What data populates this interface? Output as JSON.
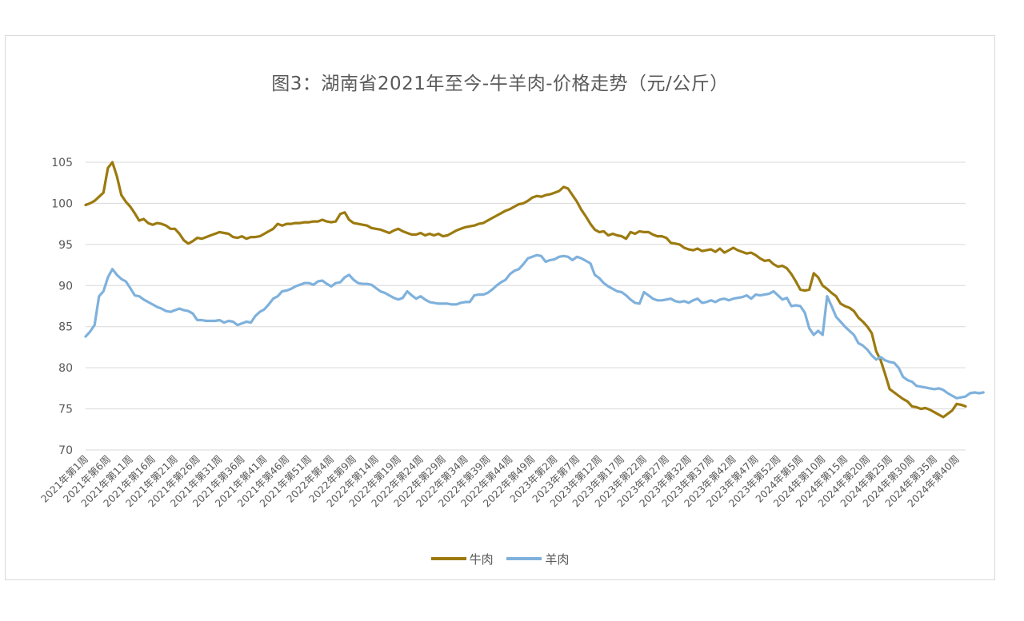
{
  "colors": {
    "beef": "#9c7a0f",
    "mutton": "#7fb1dc",
    "grid": "#d9d9d9",
    "text": "#595959"
  },
  "chart_data": {
    "type": "line",
    "title": "图3：湖南省2021年至今-牛羊肉-价格走势（元/公斤）",
    "xlabel": "",
    "ylabel": "",
    "ylim": [
      70,
      105
    ],
    "yticks": [
      70,
      75,
      80,
      85,
      90,
      95,
      100,
      105
    ],
    "grid": true,
    "legend": "bottom",
    "tick_labels": [
      "2021年第1周",
      "2021年第6周",
      "2021年第11周",
      "2021年第16周",
      "2021年第21周",
      "2021年第26周",
      "2021年第31周",
      "2021年第36周",
      "2021年第41周",
      "2021年第46周",
      "2021年第51周",
      "2022年第4周",
      "2022年第9周",
      "2022年第14周",
      "2022年第19周",
      "2022年第24周",
      "2022年第29周",
      "2022年第34周",
      "2022年第39周",
      "2022年第44周",
      "2022年第49周",
      "2023年第2周",
      "2023年第7周",
      "2023年第12周",
      "2023年第17周",
      "2023年第22周",
      "2023年第27周",
      "2023年第32周",
      "2023年第37周",
      "2023年第42周",
      "2023年第47周",
      "2023年第52周",
      "2024年第5周",
      "2024年第10周",
      "2024年第15周",
      "2024年第20周",
      "2024年第25周",
      "2024年第30周",
      "2024年第35周",
      "2024年第40周"
    ],
    "series": [
      {
        "name": "牛肉",
        "values": [
          99.8,
          100.0,
          100.3,
          100.8,
          101.3,
          104.3,
          105.0,
          103.3,
          101.0,
          100.2,
          99.6,
          98.8,
          97.9,
          98.1,
          97.6,
          97.4,
          97.6,
          97.5,
          97.3,
          96.9,
          96.9,
          96.3,
          95.5,
          95.1,
          95.4,
          95.8,
          95.7,
          95.9,
          96.1,
          96.3,
          96.5,
          96.4,
          96.3,
          95.9,
          95.8,
          96.0,
          95.7,
          95.9,
          95.9,
          96.0,
          96.3,
          96.6,
          96.9,
          97.5,
          97.3,
          97.5,
          97.5,
          97.6,
          97.6,
          97.7,
          97.7,
          97.8,
          97.8,
          98.0,
          97.8,
          97.7,
          97.8,
          98.7,
          98.9,
          98.0,
          97.6,
          97.5,
          97.4,
          97.3,
          97.0,
          96.9,
          96.8,
          96.6,
          96.4,
          96.7,
          96.9,
          96.6,
          96.4,
          96.2,
          96.2,
          96.4,
          96.1,
          96.3,
          96.1,
          96.3,
          96.0,
          96.1,
          96.4,
          96.7,
          96.9,
          97.1,
          97.2,
          97.3,
          97.5,
          97.6,
          97.9,
          98.2,
          98.5,
          98.8,
          99.1,
          99.3,
          99.6,
          99.9,
          100.0,
          100.3,
          100.7,
          100.9,
          100.8,
          101.0,
          101.1,
          101.3,
          101.5,
          102.0,
          101.8,
          101.0,
          100.2,
          99.2,
          98.4,
          97.5,
          96.8,
          96.5,
          96.6,
          96.1,
          96.3,
          96.1,
          96.0,
          95.7,
          96.5,
          96.3,
          96.6,
          96.5,
          96.5,
          96.2,
          96.0,
          96.0,
          95.8,
          95.2,
          95.1,
          95.0,
          94.6,
          94.4,
          94.3,
          94.5,
          94.2,
          94.3,
          94.4,
          94.1,
          94.5,
          94.0,
          94.3,
          94.6,
          94.3,
          94.1,
          93.9,
          94.0,
          93.7,
          93.3,
          93.0,
          93.1,
          92.6,
          92.3,
          92.4,
          92.1,
          91.4,
          90.5,
          89.5,
          89.4,
          89.5,
          91.5,
          91.0,
          90.0,
          89.6,
          89.1,
          88.7,
          87.8,
          87.5,
          87.3,
          86.9,
          86.1,
          85.6,
          85.0,
          84.2,
          82.0,
          80.9,
          79.2,
          77.4,
          77.0,
          76.6,
          76.2,
          75.9,
          75.3,
          75.2,
          75.0,
          75.1,
          74.9,
          74.6,
          74.3,
          74.0,
          74.4,
          74.8,
          75.6,
          75.5,
          75.3
        ]
      },
      {
        "name": "羊肉",
        "values": [
          83.8,
          84.4,
          85.2,
          88.7,
          89.3,
          91.0,
          92.0,
          91.3,
          90.8,
          90.5,
          89.7,
          88.8,
          88.7,
          88.3,
          88.0,
          87.7,
          87.4,
          87.2,
          86.9,
          86.8,
          87.0,
          87.2,
          87.0,
          86.9,
          86.6,
          85.8,
          85.8,
          85.7,
          85.7,
          85.7,
          85.8,
          85.5,
          85.7,
          85.6,
          85.2,
          85.4,
          85.6,
          85.5,
          86.3,
          86.8,
          87.1,
          87.7,
          88.4,
          88.7,
          89.3,
          89.4,
          89.6,
          89.9,
          90.1,
          90.3,
          90.3,
          90.1,
          90.5,
          90.6,
          90.2,
          89.9,
          90.3,
          90.4,
          91.0,
          91.3,
          90.7,
          90.3,
          90.2,
          90.2,
          90.1,
          89.7,
          89.3,
          89.1,
          88.8,
          88.5,
          88.3,
          88.5,
          89.3,
          88.8,
          88.4,
          88.7,
          88.3,
          88.0,
          87.9,
          87.8,
          87.8,
          87.8,
          87.7,
          87.7,
          87.9,
          88.0,
          88.0,
          88.8,
          88.9,
          88.9,
          89.1,
          89.5,
          90.0,
          90.4,
          90.7,
          91.4,
          91.8,
          92.0,
          92.6,
          93.3,
          93.5,
          93.7,
          93.6,
          92.9,
          93.1,
          93.2,
          93.5,
          93.6,
          93.5,
          93.1,
          93.5,
          93.3,
          93.0,
          92.7,
          91.3,
          90.9,
          90.3,
          89.9,
          89.6,
          89.3,
          89.2,
          88.8,
          88.3,
          87.9,
          87.8,
          89.2,
          88.8,
          88.4,
          88.2,
          88.2,
          88.3,
          88.4,
          88.1,
          88.0,
          88.1,
          87.9,
          88.2,
          88.4,
          87.9,
          88.0,
          88.2,
          88.0,
          88.3,
          88.4,
          88.2,
          88.4,
          88.5,
          88.6,
          88.8,
          88.4,
          88.9,
          88.8,
          88.9,
          89.0,
          89.3,
          88.8,
          88.3,
          88.5,
          87.5,
          87.6,
          87.5,
          86.7,
          84.8,
          84.0,
          84.5,
          84.0,
          88.7,
          87.5,
          86.2,
          85.6,
          85.0,
          84.5,
          84.0,
          83.0,
          82.7,
          82.2,
          81.5,
          81.0,
          81.3,
          80.9,
          80.7,
          80.6,
          80.0,
          78.9,
          78.5,
          78.3,
          77.8,
          77.7,
          77.6,
          77.5,
          77.4,
          77.5,
          77.3,
          76.9,
          76.6,
          76.3,
          76.4,
          76.5,
          76.9,
          77.0,
          76.9,
          77.0
        ]
      }
    ]
  }
}
